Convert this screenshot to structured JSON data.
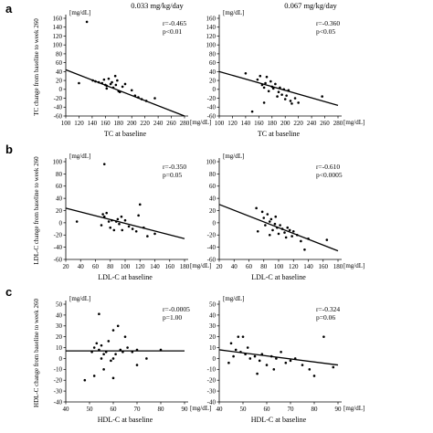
{
  "figure": {
    "columns": [
      "0.033 mg/kg/day",
      "0.067 mg/kg/day"
    ],
    "row_letters": [
      "a",
      "b",
      "c"
    ],
    "unit": "[mg/dL]"
  },
  "chart_data": [
    {
      "type": "scatter",
      "panel": "a",
      "column": "0.033 mg/kg/day",
      "xlabel": "TC at baseline",
      "ylabel": "TC change from baseline to week 260",
      "xlim": [
        100,
        280
      ],
      "ylim": [
        -60,
        160
      ],
      "xticks": [
        100,
        120,
        140,
        160,
        180,
        200,
        220,
        240,
        260,
        280
      ],
      "yticks": [
        -60,
        -40,
        -20,
        0,
        20,
        40,
        60,
        80,
        100,
        120,
        140,
        160
      ],
      "stats": [
        "r=-0.465",
        "p<0.01"
      ],
      "trend": {
        "x0": 100,
        "y0": 44,
        "x1": 280,
        "y1": -60
      },
      "points": [
        [
          132,
          152
        ],
        [
          120,
          14
        ],
        [
          141,
          20
        ],
        [
          145,
          18
        ],
        [
          150,
          16
        ],
        [
          155,
          14
        ],
        [
          158,
          22
        ],
        [
          160,
          10
        ],
        [
          162,
          8
        ],
        [
          165,
          24
        ],
        [
          168,
          12
        ],
        [
          170,
          16
        ],
        [
          172,
          4
        ],
        [
          175,
          30
        ],
        [
          176,
          10
        ],
        [
          178,
          20
        ],
        [
          180,
          -4
        ],
        [
          186,
          6
        ],
        [
          190,
          12
        ],
        [
          200,
          -2
        ],
        [
          205,
          -14
        ],
        [
          210,
          -18
        ],
        [
          215,
          -22
        ],
        [
          222,
          -26
        ],
        [
          235,
          -20
        ],
        [
          162,
          2
        ],
        [
          182,
          -6
        ]
      ]
    },
    {
      "type": "scatter",
      "panel": "a",
      "column": "0.067 mg/kg/day",
      "xlabel": "TC at baseline",
      "ylabel": "",
      "xlim": [
        100,
        280
      ],
      "ylim": [
        -60,
        160
      ],
      "xticks": [
        100,
        120,
        140,
        160,
        180,
        200,
        220,
        240,
        260,
        280
      ],
      "yticks": [
        -60,
        -40,
        -20,
        0,
        20,
        40,
        60,
        80,
        100,
        120,
        140,
        160
      ],
      "stats": [
        "r=-0.360",
        "p<0.05"
      ],
      "trend": {
        "x0": 100,
        "y0": 40,
        "x1": 280,
        "y1": -36
      },
      "points": [
        [
          140,
          36
        ],
        [
          158,
          22
        ],
        [
          162,
          30
        ],
        [
          165,
          10
        ],
        [
          168,
          4
        ],
        [
          170,
          14
        ],
        [
          172,
          28
        ],
        [
          175,
          -4
        ],
        [
          178,
          18
        ],
        [
          180,
          6
        ],
        [
          182,
          2
        ],
        [
          185,
          12
        ],
        [
          188,
          -16
        ],
        [
          190,
          -6
        ],
        [
          192,
          4
        ],
        [
          195,
          -12
        ],
        [
          198,
          0
        ],
        [
          200,
          -22
        ],
        [
          202,
          -14
        ],
        [
          205,
          -2
        ],
        [
          208,
          -26
        ],
        [
          210,
          -32
        ],
        [
          215,
          -20
        ],
        [
          220,
          -30
        ],
        [
          256,
          -16
        ],
        [
          150,
          -50
        ],
        [
          168,
          -30
        ]
      ]
    },
    {
      "type": "scatter",
      "panel": "b",
      "column": "0.033 mg/kg/day",
      "xlabel": "LDL-C at baseline",
      "ylabel": "LDL-C change from baseline to week 260",
      "xlim": [
        20,
        180
      ],
      "ylim": [
        -60,
        100
      ],
      "xticks": [
        20,
        40,
        60,
        80,
        100,
        120,
        140,
        160,
        180
      ],
      "yticks": [
        -60,
        -40,
        -20,
        0,
        20,
        40,
        60,
        80,
        100
      ],
      "stats": [
        "r=-0.350",
        "p=0.05"
      ],
      "trend": {
        "x0": 20,
        "y0": 24,
        "x1": 180,
        "y1": -26
      },
      "points": [
        [
          72,
          96
        ],
        [
          35,
          2
        ],
        [
          68,
          -4
        ],
        [
          70,
          14
        ],
        [
          72,
          10
        ],
        [
          75,
          16
        ],
        [
          78,
          2
        ],
        [
          80,
          -8
        ],
        [
          82,
          4
        ],
        [
          85,
          -12
        ],
        [
          88,
          2
        ],
        [
          90,
          6
        ],
        [
          92,
          -2
        ],
        [
          95,
          10
        ],
        [
          100,
          4
        ],
        [
          105,
          -6
        ],
        [
          110,
          -10
        ],
        [
          115,
          -14
        ],
        [
          120,
          30
        ],
        [
          125,
          -8
        ],
        [
          130,
          -22
        ],
        [
          140,
          -18
        ],
        [
          118,
          12
        ],
        [
          96,
          -12
        ]
      ]
    },
    {
      "type": "scatter",
      "panel": "b",
      "column": "0.067 mg/kg/day",
      "xlabel": "LDL-C at baseline",
      "ylabel": "",
      "xlim": [
        20,
        180
      ],
      "ylim": [
        -60,
        100
      ],
      "xticks": [
        20,
        40,
        60,
        80,
        100,
        120,
        140,
        160,
        180
      ],
      "yticks": [
        -60,
        -40,
        -20,
        0,
        20,
        40,
        60,
        80,
        100
      ],
      "stats": [
        "r=-0.610",
        "p<0.0005"
      ],
      "trend": {
        "x0": 20,
        "y0": 30,
        "x1": 180,
        "y1": -46
      },
      "points": [
        [
          70,
          24
        ],
        [
          72,
          -14
        ],
        [
          78,
          18
        ],
        [
          80,
          8
        ],
        [
          82,
          -4
        ],
        [
          85,
          14
        ],
        [
          88,
          2
        ],
        [
          90,
          6
        ],
        [
          92,
          -12
        ],
        [
          95,
          -2
        ],
        [
          98,
          -8
        ],
        [
          100,
          -18
        ],
        [
          102,
          -4
        ],
        [
          105,
          -10
        ],
        [
          108,
          -16
        ],
        [
          110,
          -24
        ],
        [
          112,
          -8
        ],
        [
          115,
          -12
        ],
        [
          118,
          -22
        ],
        [
          120,
          -14
        ],
        [
          125,
          -20
        ],
        [
          130,
          -30
        ],
        [
          135,
          -44
        ],
        [
          140,
          -26
        ],
        [
          165,
          -28
        ],
        [
          88,
          -20
        ],
        [
          96,
          10
        ]
      ]
    },
    {
      "type": "scatter",
      "panel": "c",
      "column": "0.033 mg/kg/day",
      "xlabel": "HDL-C at baseline",
      "ylabel": "HDL-C change from baseline to week 260",
      "xlim": [
        40,
        90
      ],
      "ylim": [
        -40,
        50
      ],
      "xticks": [
        40,
        50,
        60,
        70,
        80,
        90
      ],
      "yticks": [
        -40,
        -30,
        -20,
        -10,
        0,
        10,
        20,
        30,
        40,
        50
      ],
      "stats": [
        "r=-0.0005",
        "p=1.00"
      ],
      "trend": {
        "x0": 40,
        "y0": 7,
        "x1": 90,
        "y1": 7
      },
      "points": [
        [
          54,
          41
        ],
        [
          51,
          6
        ],
        [
          52,
          10
        ],
        [
          53,
          14
        ],
        [
          54,
          8
        ],
        [
          55,
          12
        ],
        [
          56,
          4
        ],
        [
          57,
          6
        ],
        [
          58,
          16
        ],
        [
          59,
          -2
        ],
        [
          60,
          26
        ],
        [
          61,
          4
        ],
        [
          62,
          30
        ],
        [
          63,
          8
        ],
        [
          64,
          6
        ],
        [
          65,
          20
        ],
        [
          66,
          10
        ],
        [
          68,
          6
        ],
        [
          70,
          8
        ],
        [
          74,
          0
        ],
        [
          48,
          -20
        ],
        [
          52,
          -16
        ],
        [
          56,
          -10
        ],
        [
          60,
          -18
        ],
        [
          70,
          -6
        ],
        [
          80,
          8
        ],
        [
          60,
          0
        ],
        [
          55,
          0
        ]
      ]
    },
    {
      "type": "scatter",
      "panel": "c",
      "column": "0.067 mg/kg/day",
      "xlabel": "HDL-C at baseline",
      "ylabel": "",
      "xlim": [
        40,
        90
      ],
      "ylim": [
        -40,
        50
      ],
      "xticks": [
        40,
        50,
        60,
        70,
        80,
        90
      ],
      "yticks": [
        -40,
        -30,
        -20,
        -10,
        0,
        10,
        20,
        30,
        40,
        50
      ],
      "stats": [
        "r=-0.324",
        "p=0.06"
      ],
      "trend": {
        "x0": 40,
        "y0": 8,
        "x1": 90,
        "y1": -6
      },
      "points": [
        [
          48,
          20
        ],
        [
          50,
          20
        ],
        [
          52,
          10
        ],
        [
          45,
          14
        ],
        [
          46,
          2
        ],
        [
          47,
          8
        ],
        [
          49,
          6
        ],
        [
          51,
          4
        ],
        [
          53,
          0
        ],
        [
          55,
          2
        ],
        [
          57,
          -2
        ],
        [
          58,
          4
        ],
        [
          60,
          -6
        ],
        [
          62,
          2
        ],
        [
          63,
          -10
        ],
        [
          64,
          0
        ],
        [
          66,
          6
        ],
        [
          68,
          -4
        ],
        [
          70,
          -2
        ],
        [
          72,
          0
        ],
        [
          75,
          -6
        ],
        [
          78,
          -10
        ],
        [
          80,
          -16
        ],
        [
          84,
          20
        ],
        [
          88,
          -8
        ],
        [
          44,
          -4
        ],
        [
          56,
          -14
        ]
      ]
    }
  ]
}
